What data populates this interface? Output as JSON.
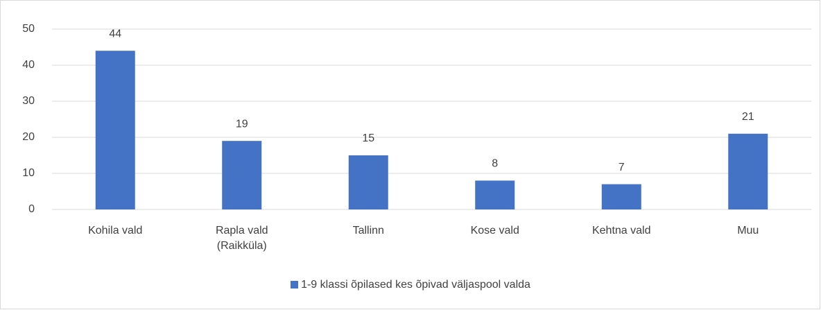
{
  "chart_data": {
    "type": "bar",
    "categories": [
      "Kohila vald",
      "Rapla vald (Raikküla)",
      "Tallinn",
      "Kose vald",
      "Kehtna vald",
      "Muu"
    ],
    "series": [
      {
        "name": "1-9 klassi õpilased kes õpivad väljaspool valda",
        "color": "#4472c4",
        "values": [
          44,
          19,
          15,
          8,
          7,
          21
        ]
      }
    ],
    "ylim": [
      0,
      50
    ],
    "yticks": [
      0,
      10,
      20,
      30,
      40,
      50
    ],
    "grid": true,
    "legend": "bottom"
  }
}
